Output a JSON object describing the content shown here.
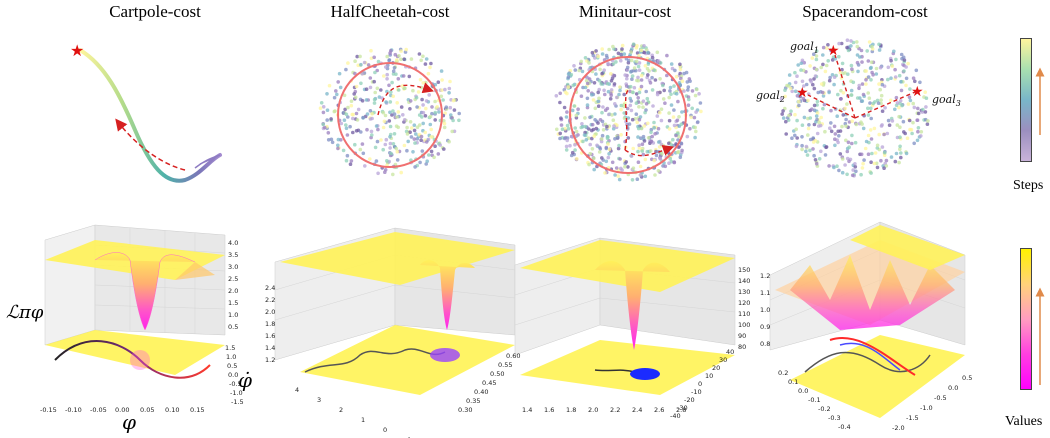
{
  "chart_data": [
    {
      "type": "line",
      "title": "Cartpole-cost",
      "subplot": "trajectory",
      "series": [
        {
          "values": []
        }
      ]
    },
    {
      "type": "scatter",
      "title": "HalfCheetah-cost",
      "subplot": "state-distribution"
    },
    {
      "type": "scatter",
      "title": "Minitaur-cost",
      "subplot": "state-distribution"
    },
    {
      "type": "scatter",
      "title": "Spacerandom-cost",
      "subplot": "state-distribution",
      "annotations": [
        "goal",
        "goal",
        "goal"
      ],
      "annotation_subscripts": [
        "1",
        "2",
        "3"
      ]
    },
    {
      "type": "heatmap",
      "subplot": "lyapunov-surface",
      "zlabel": "ℒπφ",
      "xlabel": "φ",
      "ylabel": "φ̇",
      "x_ticks": [
        "-0.15",
        "-0.10",
        "-0.05",
        "0.00",
        "0.05",
        "0.10",
        "0.15"
      ],
      "y_ticks": [
        "1.5",
        "1.0",
        "0.5",
        "0.0",
        "-0.5",
        "-1.0",
        "-1.5"
      ],
      "z_ticks": [
        "4.0",
        "3.5",
        "3.0",
        "2.5",
        "2.0",
        "1.5",
        "1.0",
        "0.5"
      ]
    },
    {
      "type": "heatmap",
      "subplot": "lyapunov-surface",
      "x_ticks": [
        "4",
        "3",
        "2",
        "1",
        "0",
        "-1"
      ],
      "y_ticks": [
        "0.30",
        "0.35",
        "0.40",
        "0.45",
        "0.50",
        "0.55",
        "0.60"
      ],
      "z_ticks": [
        "2.4",
        "2.2",
        "2.0",
        "1.8",
        "1.6",
        "1.4",
        "1.2"
      ]
    },
    {
      "type": "heatmap",
      "subplot": "lyapunov-surface",
      "x_ticks": [
        "1.4",
        "1.6",
        "1.8",
        "2.0",
        "2.2",
        "2.4",
        "2.6",
        "2.8"
      ],
      "y_ticks": [
        "-40",
        "-30",
        "-20",
        "-10",
        "0",
        "10",
        "20",
        "30",
        "40"
      ],
      "z_ticks": [
        "150",
        "140",
        "130",
        "120",
        "110",
        "100",
        "90",
        "80"
      ]
    },
    {
      "type": "heatmap",
      "subplot": "lyapunov-surface",
      "x_ticks": [
        "0.2",
        "0.1",
        "0.0",
        "-0.1",
        "-0.2",
        "-0.3",
        "-0.4"
      ],
      "y_ticks": [
        "-2.0",
        "-1.5",
        "-1.0",
        "-0.5",
        "0.0",
        "0.5"
      ],
      "z_ticks": [
        "1.2",
        "1.1",
        "1.0",
        "0.9",
        "0.8"
      ]
    }
  ],
  "titles": {
    "cartpole": "Cartpole-cost",
    "halfcheetah": "HalfCheetah-cost",
    "minitaur": "Minitaur-cost",
    "spacerandom": "Spacerandom-cost"
  },
  "colorbars": {
    "steps_label": "Steps",
    "values_label": "Values",
    "steps_colors": [
      "#fff59d",
      "#a8e0b0",
      "#79b6c9",
      "#9b8fbf",
      "#c9b3d9"
    ],
    "values_colors": [
      "#fff200",
      "#ffd27a",
      "#ff9dc0",
      "#ff3fe0",
      "#ff00ff"
    ],
    "arrow_color": "#e08a4a"
  },
  "axis_symbols": {
    "zlabel": "ℒπφ",
    "xlabel": "φ",
    "ylabel": "φ̇"
  },
  "goals": {
    "label": "goal",
    "subs": [
      "1",
      "2",
      "3"
    ]
  }
}
